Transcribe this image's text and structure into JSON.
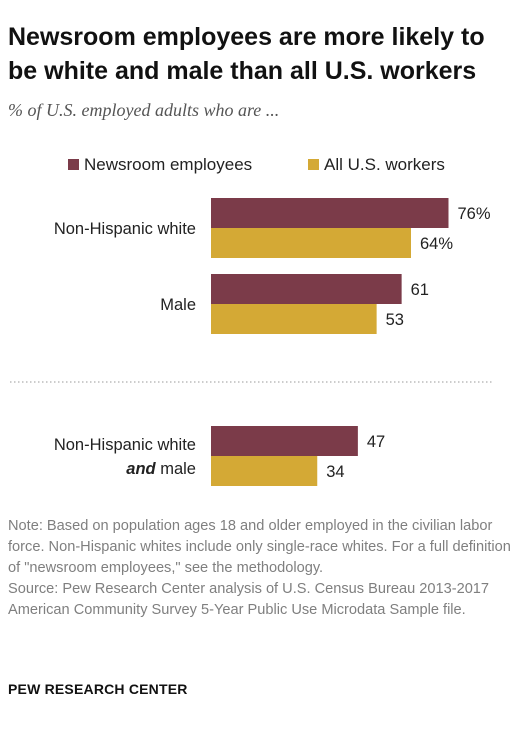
{
  "title": "Newsroom employees are more likely to be white and male than all U.S. workers",
  "subtitle": "% of U.S. employed adults who are ...",
  "colors": {
    "newsroom": "#7b3b49",
    "all_workers": "#d4a935",
    "text": "#222222",
    "divider": "#bbbbbb"
  },
  "chart_data": {
    "type": "bar",
    "orientation": "horizontal",
    "categories": [
      "Non-Hispanic white",
      "Male",
      "Non-Hispanic white and male"
    ],
    "category_label_lines": [
      [
        {
          "text": "Non-Hispanic white",
          "italic": false
        }
      ],
      [
        {
          "text": "Male",
          "italic": false
        }
      ],
      [
        {
          "text": "Non-Hispanic white",
          "italic": false
        },
        {
          "text": "and",
          "italic": true,
          "suffix": " male"
        }
      ]
    ],
    "series": [
      {
        "name": "Newsroom employees",
        "values": [
          76,
          61,
          47
        ],
        "labels": [
          "76%",
          "61",
          "47"
        ]
      },
      {
        "name": "All U.S. workers",
        "values": [
          64,
          53,
          34
        ],
        "labels": [
          "64%",
          "53",
          "34"
        ]
      }
    ],
    "xlim": [
      0,
      100
    ],
    "legend_position": "top",
    "grid": false,
    "divider_after_category": 2
  },
  "note": "Note: Based on population ages 18 and older employed in the civilian labor force. Non-Hispanic whites include only single-race whites. For a full definition of \"newsroom employees,\" see the methodology.",
  "source": "Source: Pew Research Center analysis of U.S. Census Bureau 2013-2017 American Community Survey 5-Year Public Use Microdata Sample file.",
  "brand": "PEW RESEARCH CENTER"
}
